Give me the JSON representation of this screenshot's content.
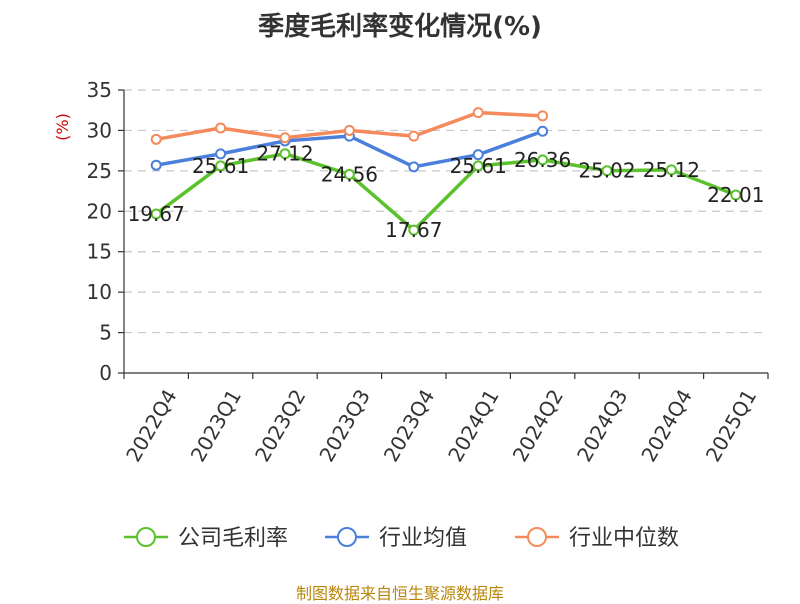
{
  "chart_data": {
    "type": "line",
    "title": "季度毛利率变化情况(%)",
    "ylabel": "(%)",
    "xlabel": "",
    "ylim": [
      0,
      35
    ],
    "yticks": [
      0,
      5,
      10,
      15,
      20,
      25,
      30,
      35
    ],
    "grid": true,
    "legend_position": "bottom",
    "categories": [
      "2022Q4",
      "2023Q1",
      "2023Q2",
      "2023Q3",
      "2023Q4",
      "2024Q1",
      "2024Q2",
      "2024Q3",
      "2024Q4",
      "2025Q1"
    ],
    "series": [
      {
        "name": "公司毛利率",
        "color": "#5cc22c",
        "values": [
          19.67,
          25.61,
          27.12,
          24.56,
          17.67,
          25.61,
          26.36,
          25.02,
          25.12,
          22.01
        ],
        "labels": [
          "19.67",
          "25.61",
          "27.12",
          "24.56",
          "17.67",
          "25.61",
          "26.36",
          "25.02",
          "25.12",
          "22.01"
        ]
      },
      {
        "name": "行业均值",
        "color": "#4a7fdb",
        "values": [
          25.7,
          27.1,
          28.7,
          29.3,
          25.5,
          27.0,
          29.9,
          null,
          null,
          null
        ]
      },
      {
        "name": "行业中位数",
        "color": "#f58a5c",
        "values": [
          28.9,
          30.3,
          29.1,
          30.0,
          29.3,
          32.2,
          31.8,
          null,
          null,
          null
        ]
      }
    ]
  },
  "source": "制图数据来自恒生聚源数据库"
}
